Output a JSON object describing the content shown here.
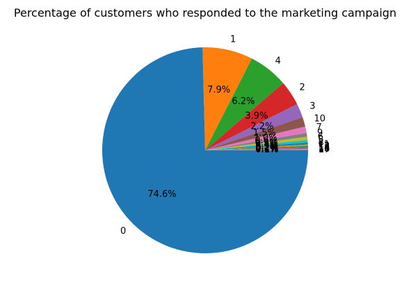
{
  "chart_data": {
    "type": "pie",
    "title": "Percentage of customers who responded to the marketing campaign",
    "start_angle_deg": 0,
    "direction": "clockwise",
    "slices": [
      {
        "label": "0",
        "value": 74.6,
        "pct_label": "74.6%",
        "color": "#1f77b4"
      },
      {
        "label": "1",
        "value": 7.9,
        "pct_label": "7.9%",
        "color": "#ff7f0e"
      },
      {
        "label": "4",
        "value": 6.2,
        "pct_label": "6.2%",
        "color": "#2ca02c"
      },
      {
        "label": "2",
        "value": 3.9,
        "pct_label": "3.9%",
        "color": "#d62728"
      },
      {
        "label": "3",
        "value": 2.2,
        "pct_label": "2.2%",
        "color": "#9467bd"
      },
      {
        "label": "10",
        "value": 1.5,
        "pct_label": "1.5%",
        "color": "#8c564b"
      },
      {
        "label": "7",
        "value": 1.0,
        "pct_label": "1.0%",
        "color": "#e377c2"
      },
      {
        "label": "9",
        "value": 0.6,
        "pct_label": "0.6%",
        "color": "#7f7f7f"
      },
      {
        "label": "6",
        "value": 0.5,
        "pct_label": "0.5%",
        "color": "#bcbd22"
      },
      {
        "label": "5",
        "value": 0.4,
        "pct_label": "0.4%",
        "color": "#17becf"
      },
      {
        "label": "8",
        "value": 0.3,
        "pct_label": "0.3%",
        "color": "#1f77b4"
      },
      {
        "label": "11",
        "value": 0.2,
        "pct_label": "0.2%",
        "color": "#ff7f0e"
      },
      {
        "label": "12",
        "value": 0.2,
        "pct_label": "0.2%",
        "color": "#2ca02c"
      },
      {
        "label": "13",
        "value": 0.1,
        "pct_label": "0.1%",
        "color": "#d62728"
      },
      {
        "label": "14",
        "value": 0.1,
        "pct_label": "0.1%",
        "color": "#9467bd"
      },
      {
        "label": "15",
        "value": 0.1,
        "pct_label": "0.1%",
        "color": "#8c564b"
      },
      {
        "label": "16",
        "value": 0.1,
        "pct_label": "0.1%",
        "color": "#e377c2"
      },
      {
        "label": "17",
        "value": 0.1,
        "pct_label": "0.1%",
        "color": "#7f7f7f"
      }
    ]
  }
}
